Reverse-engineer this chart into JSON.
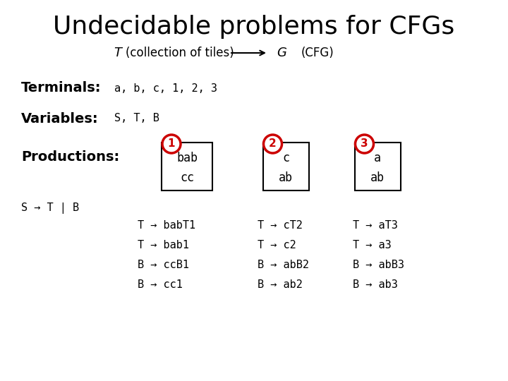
{
  "title": "Undecidable problems for CFGs",
  "subtitle_desc": "(collection of tiles)",
  "subtitle_cfg": "(CFG)",
  "terminals_label": "Terminals:",
  "terminals_value": "a, b, c, 1, 2, 3",
  "variables_label": "Variables:",
  "variables_value": "S, T, B",
  "productions_label": "Productions:",
  "tile1_top": "bab",
  "tile1_bot": "cc",
  "tile2_top": "c",
  "tile2_bot": "ab",
  "tile3_top": "a",
  "tile3_bot": "ab",
  "s_rule": "S → T | B",
  "col1_rules": [
    "T → babT1",
    "T → bab1",
    "B → ccB1",
    "B → cc1"
  ],
  "col2_rules": [
    "T → cT2",
    "T → c2",
    "B → abB2",
    "B → ab2"
  ],
  "col3_rules": [
    "T → aT3",
    "T → a3",
    "B → abB3",
    "B → ab3"
  ],
  "bg_color": "#ffffff",
  "text_color": "#000000",
  "circle_color": "#cc0000",
  "title_fontsize": 26,
  "label_fontsize": 14,
  "value_fontsize": 11,
  "rule_fontsize": 11,
  "tile_fontsize": 12,
  "subtitle_fontsize": 12
}
